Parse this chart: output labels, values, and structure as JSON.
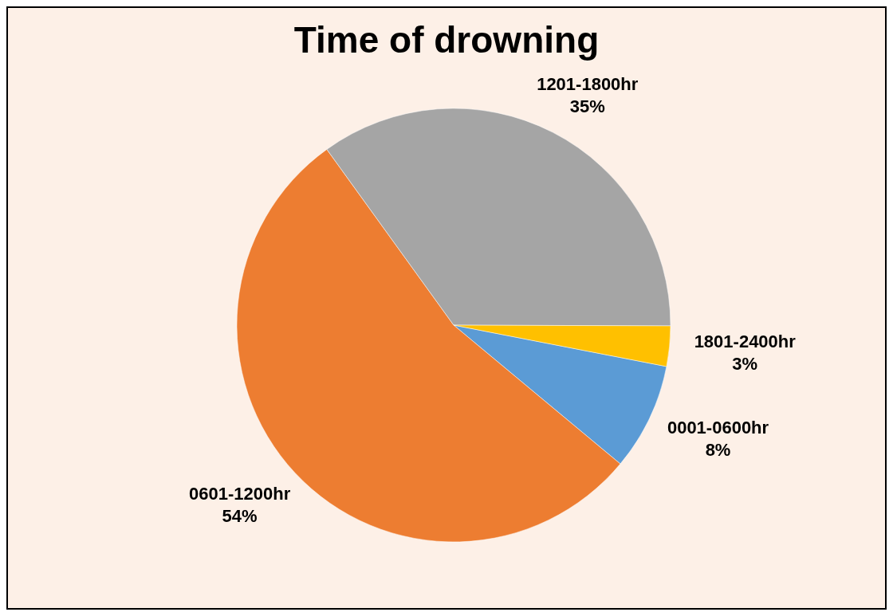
{
  "chart_data": {
    "type": "pie",
    "title": "Time of drowning",
    "categories": [
      "0001-0600hr",
      "0601-1200hr",
      "1201-1800hr",
      "1801-2400hr"
    ],
    "values": [
      8,
      54,
      35,
      3
    ],
    "value_labels": [
      "8%",
      "54%",
      "35%",
      "3%"
    ],
    "colors": [
      "#5b9bd5",
      "#ed7d31",
      "#a5a5a5",
      "#ffc000"
    ]
  }
}
